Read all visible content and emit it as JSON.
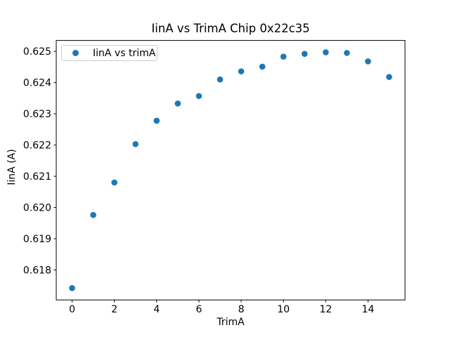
{
  "figure": {
    "background": "#ffffff",
    "text_color": "#000000",
    "spine_color": "#000000",
    "legend_border_color": "#cccccc"
  },
  "chart_data": {
    "type": "scatter",
    "title": "IinA vs TrimA Chip 0x22c35",
    "xlabel": "TrimA",
    "ylabel": "IinA (A)",
    "legend": {
      "label": "IinA vs trimA",
      "position": "upper-left",
      "marker": "filled-circle"
    },
    "series": [
      {
        "name": "IinA vs trimA",
        "x": [
          0,
          1,
          2,
          3,
          4,
          5,
          6,
          7,
          8,
          9,
          10,
          11,
          12,
          13,
          14,
          15
        ],
        "y": [
          0.61742,
          0.61976,
          0.6208,
          0.62203,
          0.62278,
          0.62333,
          0.62357,
          0.6241,
          0.62436,
          0.62451,
          0.62483,
          0.62492,
          0.62497,
          0.62495,
          0.62468,
          0.62418
        ]
      }
    ],
    "marker_color": "#1f77b4",
    "xlim": [
      -0.75,
      15.75
    ],
    "ylim": [
      0.61704,
      0.62535
    ],
    "xticks": [
      0,
      2,
      4,
      6,
      8,
      10,
      12,
      14
    ],
    "ytick_labels": [
      "0.618",
      "0.619",
      "0.620",
      "0.621",
      "0.622",
      "0.623",
      "0.624",
      "0.625"
    ],
    "grid": false
  }
}
